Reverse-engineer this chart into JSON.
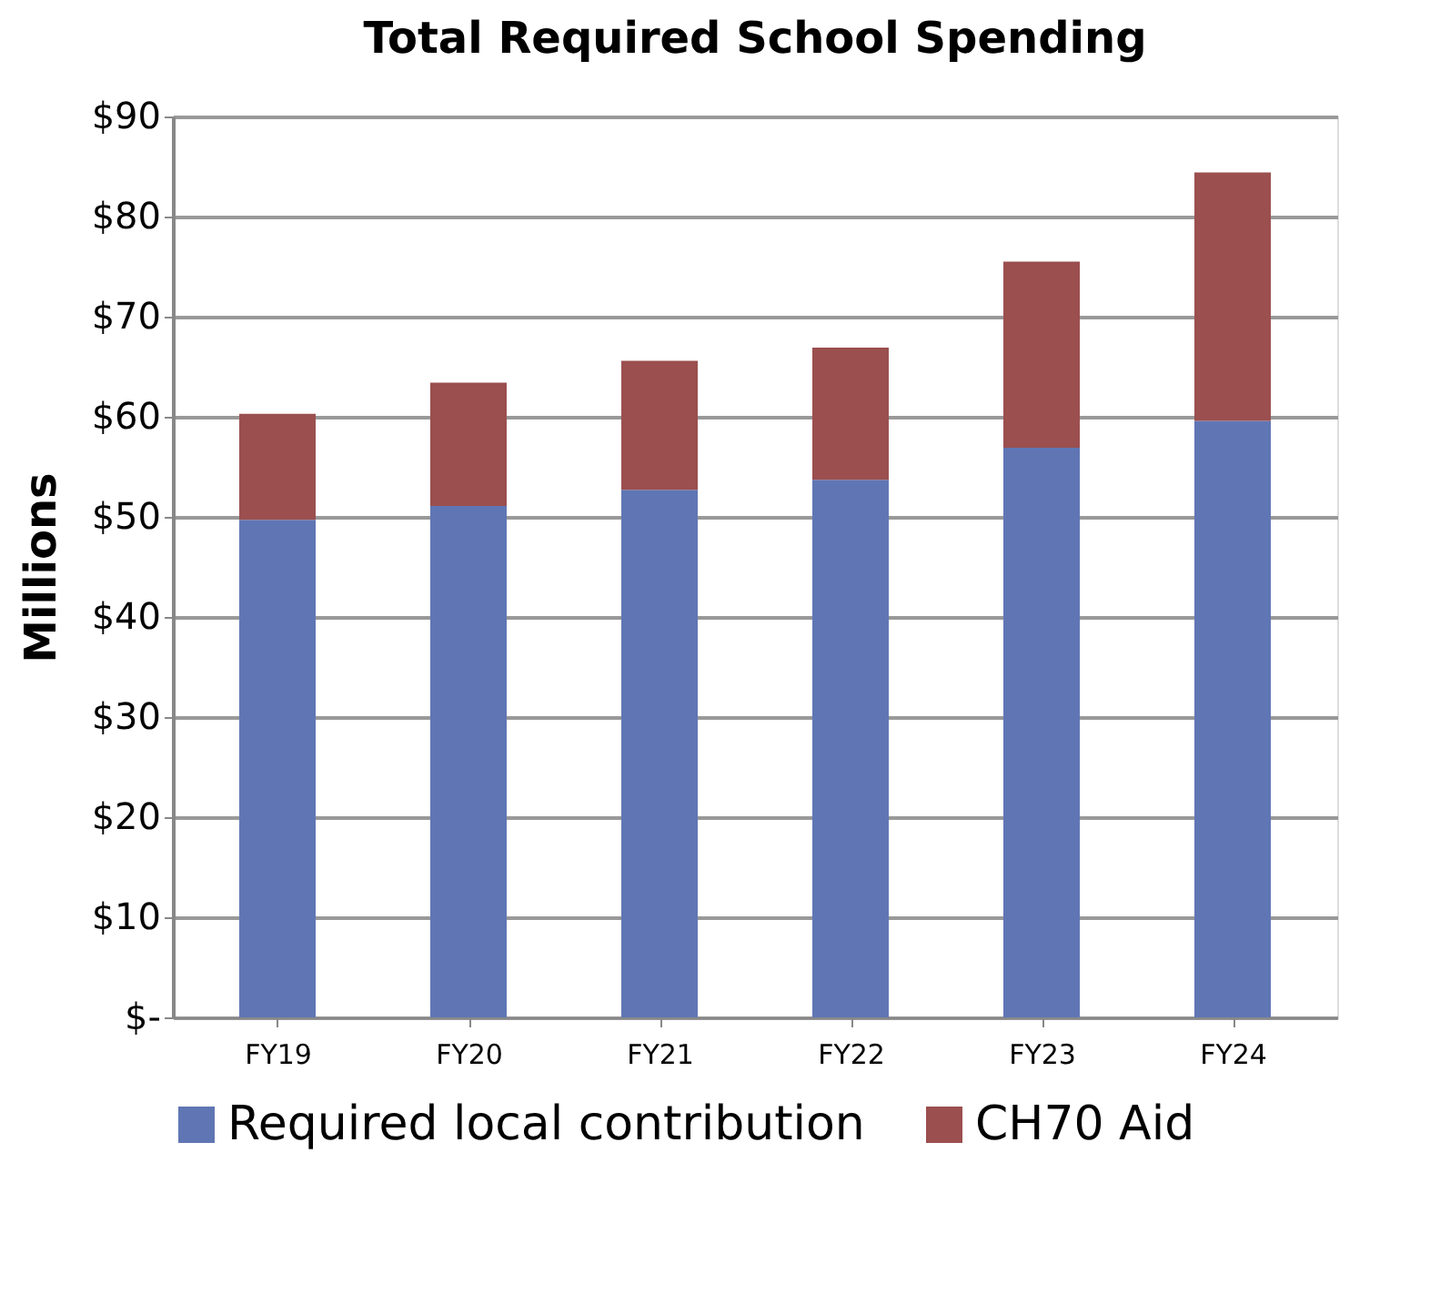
{
  "chart_data": {
    "type": "bar",
    "title": "Total Required School Spending",
    "ylabel": "Millions",
    "categories": [
      "FY19",
      "FY20",
      "FY21",
      "FY22",
      "FY23",
      "FY24"
    ],
    "stacked": true,
    "series": [
      {
        "name": "Required local contribution",
        "color": "#6076b4",
        "values": [
          49.7,
          51.1,
          52.7,
          53.7,
          56.9,
          59.6
        ]
      },
      {
        "name": "CH70 Aid",
        "color": "#9b4f4f",
        "values": [
          10.6,
          12.3,
          12.9,
          13.2,
          18.6,
          24.8
        ]
      }
    ],
    "ylim": [
      0,
      90
    ],
    "yticks": [
      {
        "value": 0,
        "label": "$-"
      },
      {
        "value": 10,
        "label": "$10"
      },
      {
        "value": 20,
        "label": "$20"
      },
      {
        "value": 30,
        "label": "$30"
      },
      {
        "value": 40,
        "label": "$40"
      },
      {
        "value": 50,
        "label": "$50"
      },
      {
        "value": 60,
        "label": "$60"
      },
      {
        "value": 70,
        "label": "$70"
      },
      {
        "value": 80,
        "label": "$80"
      },
      {
        "value": 90,
        "label": "$90"
      }
    ],
    "grid": "y",
    "legend": "bottom"
  }
}
